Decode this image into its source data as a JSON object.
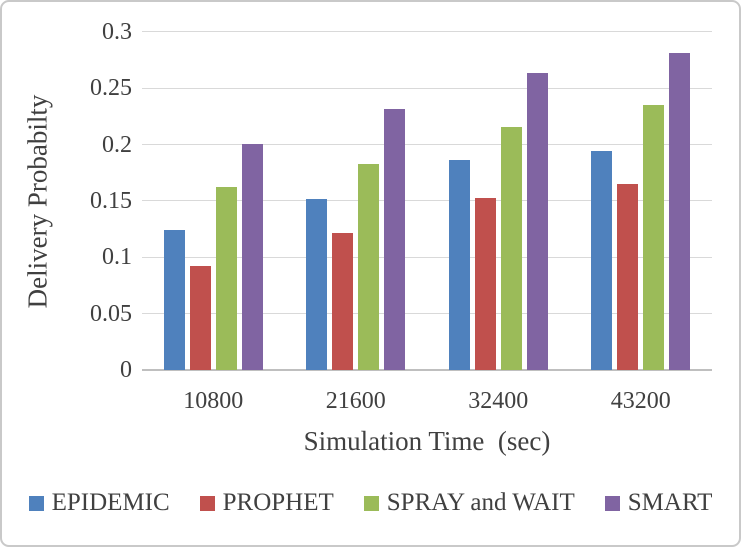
{
  "figure": {
    "background": "#ffffff",
    "border_color": "#c9c9c9",
    "text_color": "#404040"
  },
  "chart_data": {
    "type": "bar",
    "title": "",
    "xlabel": "Simulation Time  (sec)",
    "ylabel": "Delivery Probabilty",
    "categories": [
      "10800",
      "21600",
      "32400",
      "43200"
    ],
    "series": [
      {
        "name": "EPIDEMIC",
        "color": "#4f81bd",
        "values": [
          0.124,
          0.152,
          0.186,
          0.194
        ]
      },
      {
        "name": "PROPHET",
        "color": "#c0504d",
        "values": [
          0.092,
          0.122,
          0.153,
          0.165
        ]
      },
      {
        "name": "SPRAY and WAIT",
        "color": "#9bbb59",
        "values": [
          0.162,
          0.183,
          0.216,
          0.235
        ]
      },
      {
        "name": "SMART",
        "color": "#8064a2",
        "values": [
          0.201,
          0.232,
          0.264,
          0.281
        ]
      }
    ],
    "ylim": [
      0,
      0.3
    ],
    "yticks": [
      "0",
      "0.05",
      "0.1",
      "0.15",
      "0.2",
      "0.25",
      "0.3"
    ],
    "grid": true,
    "legend_position": "bottom",
    "gridline_color": "#d9d9d9",
    "axis_line_color": "#bfbfbf"
  }
}
